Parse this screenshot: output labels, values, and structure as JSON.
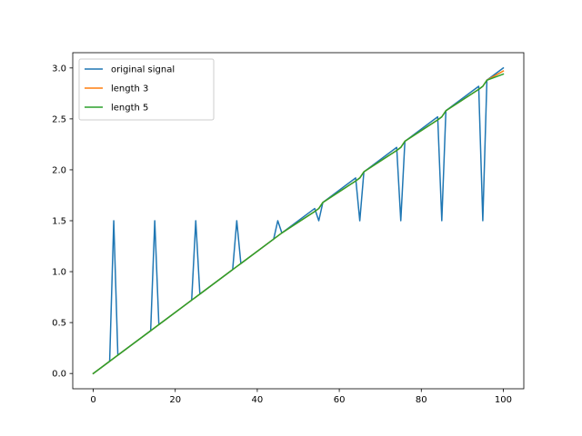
{
  "chart_data": {
    "type": "line",
    "title": "",
    "xlabel": "",
    "ylabel": "",
    "xlim": [
      -5,
      105
    ],
    "ylim": [
      -0.15,
      3.15
    ],
    "x_ticks": [
      0,
      20,
      40,
      60,
      80,
      100
    ],
    "y_ticks": [
      0.0,
      0.5,
      1.0,
      1.5,
      2.0,
      2.5,
      3.0
    ],
    "x_tick_labels": [
      "0",
      "20",
      "40",
      "60",
      "80",
      "100"
    ],
    "y_tick_labels": [
      "0.0",
      "0.5",
      "1.0",
      "1.5",
      "2.0",
      "2.5",
      "3.0"
    ],
    "grid": false,
    "legend_position": "top-left",
    "x": [
      0,
      4,
      5,
      6,
      14,
      15,
      16,
      24,
      25,
      26,
      34,
      35,
      36,
      44,
      45,
      46,
      54,
      55,
      56,
      64,
      65,
      66,
      74,
      75,
      76,
      84,
      85,
      86,
      94,
      95,
      96,
      100
    ],
    "series": [
      {
        "name": "original signal",
        "color": "#1f77b4",
        "values": [
          0.0,
          0.12,
          1.5,
          0.18,
          0.42,
          1.5,
          0.48,
          0.72,
          1.5,
          0.78,
          1.02,
          1.5,
          1.08,
          1.32,
          1.5,
          1.38,
          1.62,
          1.5,
          1.68,
          1.92,
          1.5,
          1.98,
          2.22,
          1.5,
          2.28,
          2.52,
          1.5,
          2.58,
          2.82,
          1.5,
          2.88,
          3.0
        ]
      },
      {
        "name": "length 3",
        "color": "#ff7f0e",
        "values": [
          0.0,
          0.12,
          0.15,
          0.18,
          0.42,
          0.45,
          0.48,
          0.72,
          0.75,
          0.78,
          1.02,
          1.05,
          1.08,
          1.32,
          1.35,
          1.38,
          1.59,
          1.62,
          1.68,
          1.89,
          1.92,
          1.98,
          2.19,
          2.22,
          2.28,
          2.49,
          2.52,
          2.58,
          2.79,
          2.82,
          2.88,
          2.97
        ]
      },
      {
        "name": "length 5",
        "color": "#2ca02c",
        "values": [
          0.0,
          0.12,
          0.15,
          0.18,
          0.42,
          0.45,
          0.48,
          0.72,
          0.75,
          0.78,
          1.02,
          1.05,
          1.08,
          1.32,
          1.35,
          1.38,
          1.59,
          1.62,
          1.68,
          1.89,
          1.92,
          1.98,
          2.19,
          2.22,
          2.28,
          2.49,
          2.52,
          2.58,
          2.79,
          2.82,
          2.88,
          2.94
        ]
      }
    ]
  }
}
